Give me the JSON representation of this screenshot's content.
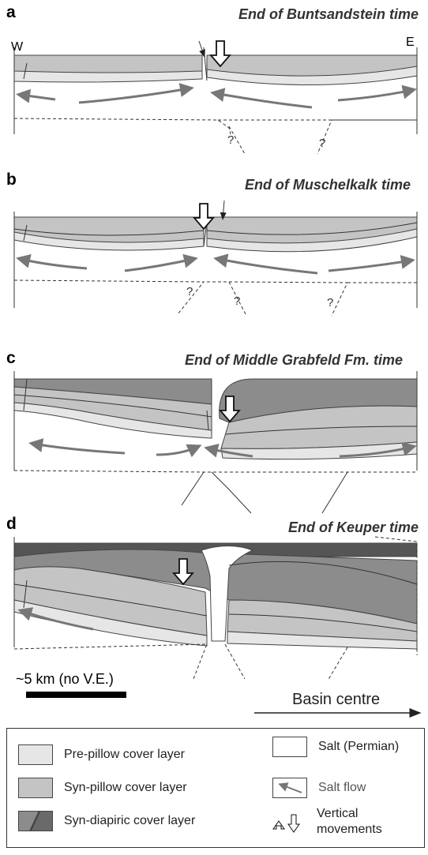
{
  "panels": [
    {
      "letter": "a",
      "title": "End of Buntsandstein time"
    },
    {
      "letter": "b",
      "title": "End of Muschelkalk time"
    },
    {
      "letter": "c",
      "title": "End of Middle Grabfeld Fm. time"
    },
    {
      "letter": "d",
      "title": "End of Keuper time"
    }
  ],
  "directions": {
    "west": "W",
    "east": "E"
  },
  "uncertain_fault": "?",
  "scale_bar": "~5 km (no V.E.)",
  "direction_label": "Basin centre",
  "legend": [
    "Pre-pillow cover layer",
    "Syn-pillow cover layer",
    "Syn-diapiric cover layer",
    "Salt (Permian)",
    "Salt flow",
    "Vertical movements"
  ]
}
